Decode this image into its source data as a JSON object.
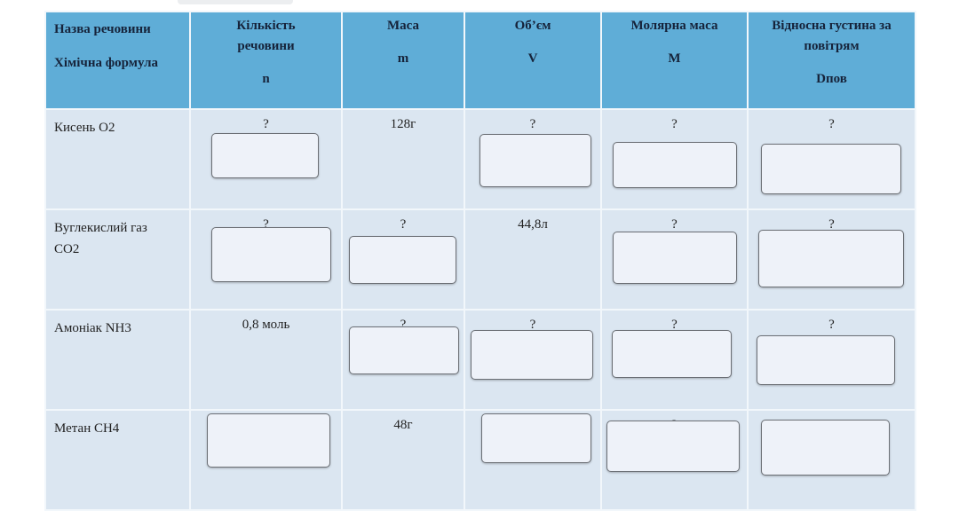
{
  "headers": [
    {
      "line1": "Назва речовини",
      "line2": "Хімічна формула",
      "line3": ""
    },
    {
      "line1": "Кількість",
      "line2": "речовини",
      "line3": "n"
    },
    {
      "line1": "Маса",
      "line2": "m",
      "line3": ""
    },
    {
      "line1": "Об’єм",
      "line2": "V",
      "line3": ""
    },
    {
      "line1": "Молярна маса",
      "line2": "M",
      "line3": ""
    },
    {
      "line1": "Відносна густина за",
      "line2": "повітрям",
      "line3": "Dпов"
    }
  ],
  "rows": [
    {
      "name": "Кисень O2",
      "name2": "",
      "cells": [
        "?",
        "128г",
        "?",
        "?",
        "?"
      ]
    },
    {
      "name": "Вуглекислий газ",
      "name2": "CO2",
      "cells": [
        "?",
        "?",
        "44,8л",
        "?",
        "?"
      ]
    },
    {
      "name": "Амоніак NH3",
      "name2": "",
      "cells": [
        "0,8 моль",
        "?",
        "?",
        "?",
        "?"
      ]
    },
    {
      "name": "Метан CH4",
      "name2": "",
      "cells": [
        "?",
        "48г",
        "?",
        "?",
        "?"
      ]
    }
  ],
  "colors": {
    "header_bg": "#5fadd7",
    "row_bg": "#dbe6f1",
    "input_bg": "#eef2f9"
  }
}
